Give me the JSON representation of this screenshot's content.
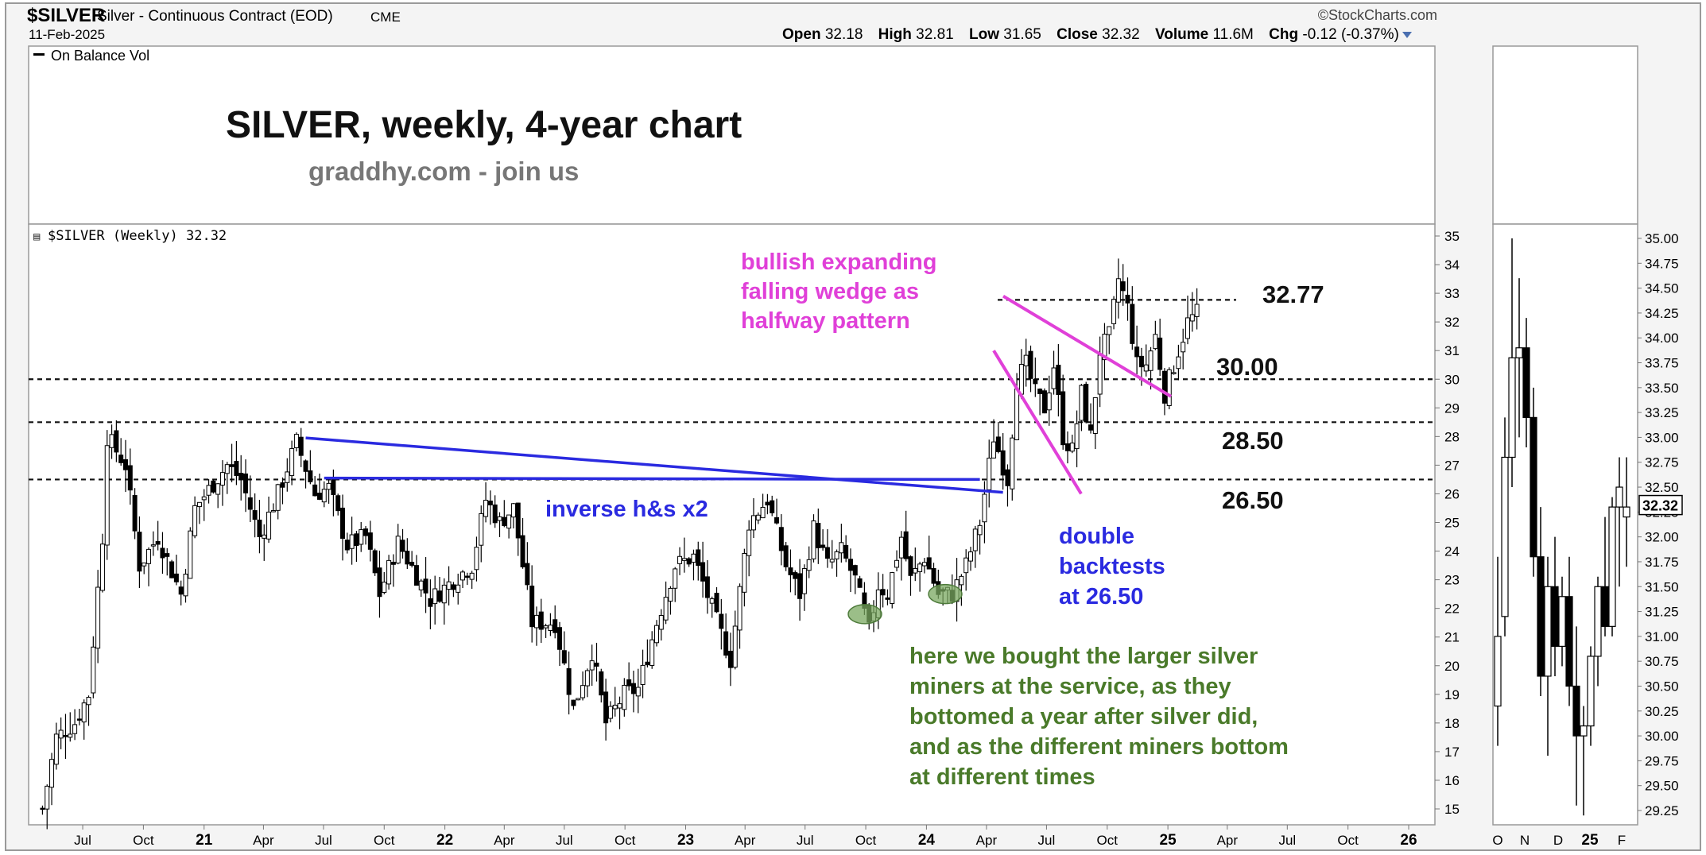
{
  "header": {
    "symbol": "$SILVER",
    "description": "Silver - Continuous Contract (EOD)",
    "exchange": "CME",
    "date": "11-Feb-2025",
    "credit": "©StockCharts.com",
    "open_label": "Open",
    "open": "32.18",
    "high_label": "High",
    "high": "32.81",
    "low_label": "Low",
    "low": "31.65",
    "close_label": "Close",
    "close": "32.32",
    "volume_label": "Volume",
    "volume": "11.6M",
    "chg_label": "Chg",
    "chg": "-0.12 (-0.37%)"
  },
  "obv_panel": {
    "legend": "On Balance Vol"
  },
  "annotations": {
    "title": "SILVER, weekly, 4-year chart",
    "subtitle": "graddhy.com - join us",
    "price_legend": "$SILVER (Weekly) 32.32",
    "wedge_text": [
      "bullish expanding",
      "falling wedge as",
      "halfway pattern"
    ],
    "hs_text": "inverse h&s x2",
    "backtest_text": [
      "double",
      "backtests",
      "at 26.50"
    ],
    "miners_text": [
      "here we bought the larger silver",
      "miners at the service, as they",
      "bottomed a year after silver did,",
      "and as the different miners bottom",
      "at different times"
    ],
    "level_labels": [
      "32.77",
      "30.00",
      "28.50",
      "26.50"
    ],
    "last_price_tag": "32.32"
  },
  "colors": {
    "wedge": "#e040d8",
    "neckline": "#2a2ae0",
    "green_text": "#4a7a2a",
    "green_marker": "#7aa860"
  },
  "chart_data": [
    {
      "type": "candlestick",
      "timeframe": "weekly",
      "ylim": [
        14.5,
        35.4
      ],
      "yticks": [
        15,
        16,
        17,
        18,
        19,
        20,
        21,
        22,
        23,
        24,
        25,
        26,
        27,
        28,
        29,
        30,
        31,
        32,
        33,
        34,
        35
      ],
      "xlabels": [
        "Jul",
        "Oct",
        "21",
        "Apr",
        "Jul",
        "Oct",
        "22",
        "Apr",
        "Jul",
        "Oct",
        "23",
        "Apr",
        "Jul",
        "Oct",
        "24",
        "Apr",
        "Jul",
        "Oct",
        "25",
        "Apr",
        "Jul",
        "Oct",
        "26"
      ],
      "xrange": [
        "2020-05-01",
        "2026-02-15"
      ],
      "horizontal_levels": [
        32.77,
        30.0,
        28.5,
        26.5
      ],
      "anchors": [
        [
          "2020-05-01",
          15.0
        ],
        [
          "2020-05-22",
          17.5
        ],
        [
          "2020-06-19",
          18.0
        ],
        [
          "2020-07-10",
          19.0
        ],
        [
          "2020-07-31",
          24.5
        ],
        [
          "2020-08-07",
          28.0
        ],
        [
          "2020-09-04",
          27.0
        ],
        [
          "2020-09-25",
          23.5
        ],
        [
          "2020-10-23",
          24.5
        ],
        [
          "2020-11-27",
          22.5
        ],
        [
          "2020-12-18",
          25.5
        ],
        [
          "2021-02-05",
          27.0
        ],
        [
          "2021-02-26",
          26.5
        ],
        [
          "2021-03-26",
          24.5
        ],
        [
          "2021-04-23",
          26.0
        ],
        [
          "2021-05-21",
          27.8
        ],
        [
          "2021-06-18",
          26.0
        ],
        [
          "2021-07-09",
          26.2
        ],
        [
          "2021-08-06",
          24.2
        ],
        [
          "2021-09-03",
          24.5
        ],
        [
          "2021-09-24",
          22.5
        ],
        [
          "2021-10-22",
          24.3
        ],
        [
          "2021-12-10",
          22.3
        ],
        [
          "2022-01-14",
          23.0
        ],
        [
          "2022-02-11",
          23.5
        ],
        [
          "2022-03-04",
          25.8
        ],
        [
          "2022-03-25",
          25.0
        ],
        [
          "2022-04-15",
          25.5
        ],
        [
          "2022-05-13",
          21.5
        ],
        [
          "2022-06-17",
          21.5
        ],
        [
          "2022-07-15",
          18.5
        ],
        [
          "2022-08-12",
          20.5
        ],
        [
          "2022-09-02",
          18.0
        ],
        [
          "2022-09-30",
          19.0
        ],
        [
          "2022-10-21",
          19.2
        ],
        [
          "2022-11-18",
          21.5
        ],
        [
          "2022-12-16",
          23.5
        ],
        [
          "2023-01-13",
          23.8
        ],
        [
          "2023-02-10",
          22.0
        ],
        [
          "2023-03-10",
          20.2
        ],
        [
          "2023-04-07",
          25.0
        ],
        [
          "2023-05-05",
          25.8
        ],
        [
          "2023-06-02",
          23.5
        ],
        [
          "2023-06-23",
          22.5
        ],
        [
          "2023-07-14",
          24.8
        ],
        [
          "2023-08-04",
          23.5
        ],
        [
          "2023-08-25",
          24.0
        ],
        [
          "2023-09-15",
          23.0
        ],
        [
          "2023-10-06",
          21.2
        ],
        [
          "2023-10-20",
          22.8
        ],
        [
          "2023-11-03",
          22.5
        ],
        [
          "2023-11-24",
          24.5
        ],
        [
          "2023-12-08",
          23.0
        ],
        [
          "2023-12-29",
          23.8
        ],
        [
          "2024-01-19",
          22.5
        ],
        [
          "2024-02-09",
          22.5
        ],
        [
          "2024-03-01",
          23.5
        ],
        [
          "2024-03-22",
          25.0
        ],
        [
          "2024-04-12",
          28.0
        ],
        [
          "2024-05-03",
          26.5
        ],
        [
          "2024-05-17",
          30.0
        ],
        [
          "2024-05-31",
          30.5
        ],
        [
          "2024-06-14",
          29.5
        ],
        [
          "2024-06-28",
          29.0
        ],
        [
          "2024-07-12",
          30.5
        ],
        [
          "2024-07-26",
          28.0
        ],
        [
          "2024-08-09",
          27.5
        ],
        [
          "2024-08-23",
          29.5
        ],
        [
          "2024-09-06",
          28.0
        ],
        [
          "2024-09-20",
          31.0
        ],
        [
          "2024-10-04",
          31.5
        ],
        [
          "2024-10-18",
          33.5
        ],
        [
          "2024-11-01",
          32.5
        ],
        [
          "2024-11-15",
          30.5
        ],
        [
          "2024-11-29",
          30.5
        ],
        [
          "2024-12-13",
          31.5
        ],
        [
          "2024-12-27",
          29.5
        ],
        [
          "2025-01-10",
          30.5
        ],
        [
          "2025-01-31",
          32.0
        ],
        [
          "2025-02-14",
          32.3
        ]
      ]
    },
    {
      "type": "candlestick",
      "timeframe": "daily",
      "ylim": [
        29.05,
        35.2
      ],
      "yticks": [
        29.25,
        29.5,
        29.75,
        30.0,
        30.25,
        30.5,
        30.75,
        31.0,
        31.25,
        31.5,
        31.75,
        32.0,
        32.25,
        32.5,
        32.75,
        33.0,
        33.25,
        33.5,
        33.75,
        34.0,
        34.25,
        34.5,
        34.75,
        35.0
      ],
      "ytick_labels": [
        "29.25",
        "29.50",
        "29.75",
        "30.00",
        "30.25",
        "30.50",
        "30.75",
        "31.00",
        "31.25",
        "31.50",
        "31.75",
        "32.00",
        "32.25",
        "32.50",
        "32.75",
        "33.00",
        "33.25",
        "33.50",
        "33.75",
        "34.00",
        "34.25",
        "34.50",
        "34.75",
        "35.00"
      ],
      "xlabels": [
        "O",
        "N",
        "D",
        "25",
        "F"
      ],
      "candles": [
        [
          30.3,
          31.8,
          29.9,
          31.0
        ],
        [
          31.2,
          33.2,
          31.0,
          32.8
        ],
        [
          32.8,
          35.0,
          32.5,
          33.8
        ],
        [
          33.8,
          34.6,
          33.0,
          33.9
        ],
        [
          33.9,
          34.2,
          32.9,
          33.2
        ],
        [
          33.2,
          33.5,
          31.6,
          31.8
        ],
        [
          31.8,
          32.3,
          30.4,
          30.6
        ],
        [
          30.6,
          31.8,
          29.8,
          31.5
        ],
        [
          31.5,
          32.0,
          30.6,
          30.9
        ],
        [
          30.9,
          31.6,
          30.7,
          31.4
        ],
        [
          31.4,
          31.8,
          30.3,
          30.5
        ],
        [
          30.5,
          31.1,
          29.3,
          30.0
        ],
        [
          30.0,
          30.3,
          29.2,
          30.1
        ],
        [
          30.1,
          30.9,
          29.9,
          30.8
        ],
        [
          30.8,
          31.6,
          30.5,
          31.5
        ],
        [
          31.5,
          32.2,
          31.0,
          31.1
        ],
        [
          31.1,
          32.4,
          31.0,
          32.3
        ],
        [
          32.3,
          32.8,
          31.5,
          32.5
        ],
        [
          32.2,
          32.8,
          31.7,
          32.3
        ]
      ]
    }
  ]
}
